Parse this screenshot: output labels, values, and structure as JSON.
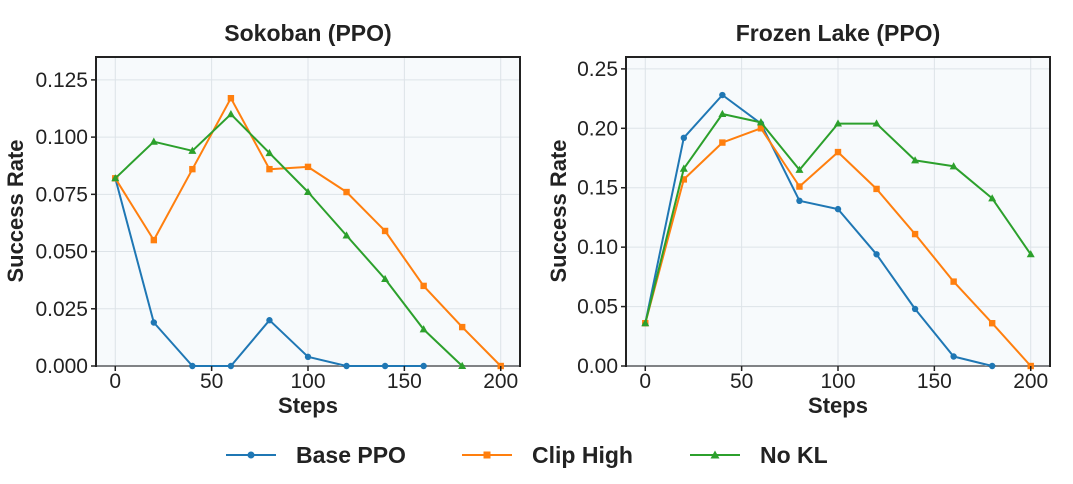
{
  "chart_data": [
    {
      "type": "line",
      "title": "Sokoban (PPO)",
      "xlabel": "Steps",
      "ylabel": "Success Rate",
      "xlim": [
        -10,
        210
      ],
      "ylim": [
        0,
        0.135
      ],
      "xticks": [
        0,
        50,
        100,
        150,
        200
      ],
      "yticks": [
        0.0,
        0.025,
        0.05,
        0.075,
        0.1,
        0.125
      ],
      "ytick_labels": [
        "0.000",
        "0.025",
        "0.050",
        "0.075",
        "0.100",
        "0.125"
      ],
      "xtick_labels": [
        "0",
        "50",
        "100",
        "150",
        "200"
      ],
      "series": [
        {
          "name": "Base PPO",
          "x": [
            0,
            20,
            40,
            60,
            80,
            100,
            120,
            140,
            160
          ],
          "values": [
            0.082,
            0.019,
            0.0,
            0.0,
            0.02,
            0.004,
            0.0,
            0.0,
            0.0
          ]
        },
        {
          "name": "Clip High",
          "x": [
            0,
            20,
            40,
            60,
            80,
            100,
            120,
            140,
            160,
            180,
            200
          ],
          "values": [
            0.082,
            0.055,
            0.086,
            0.117,
            0.086,
            0.087,
            0.076,
            0.059,
            0.035,
            0.017,
            0.0
          ]
        },
        {
          "name": "No KL",
          "x": [
            0,
            20,
            40,
            60,
            80,
            100,
            120,
            140,
            160,
            180
          ],
          "values": [
            0.082,
            0.098,
            0.094,
            0.11,
            0.093,
            0.076,
            0.057,
            0.038,
            0.016,
            0.0
          ]
        }
      ]
    },
    {
      "type": "line",
      "title": "Frozen Lake (PPO)",
      "xlabel": "Steps",
      "ylabel": "Success Rate",
      "xlim": [
        -10,
        210
      ],
      "ylim": [
        0,
        0.26
      ],
      "xticks": [
        0,
        50,
        100,
        150,
        200
      ],
      "yticks": [
        0.0,
        0.05,
        0.1,
        0.15,
        0.2,
        0.25
      ],
      "ytick_labels": [
        "0.00",
        "0.05",
        "0.10",
        "0.15",
        "0.20",
        "0.25"
      ],
      "xtick_labels": [
        "0",
        "50",
        "100",
        "150",
        "200"
      ],
      "series": [
        {
          "name": "Base PPO",
          "x": [
            0,
            20,
            40,
            60,
            80,
            100,
            120,
            140,
            160,
            180
          ],
          "values": [
            0.036,
            0.192,
            0.228,
            0.204,
            0.139,
            0.132,
            0.094,
            0.048,
            0.008,
            0.0
          ]
        },
        {
          "name": "Clip High",
          "x": [
            0,
            20,
            40,
            60,
            80,
            100,
            120,
            140,
            160,
            180,
            200
          ],
          "values": [
            0.036,
            0.157,
            0.188,
            0.2,
            0.151,
            0.18,
            0.149,
            0.111,
            0.071,
            0.036,
            0.0
          ]
        },
        {
          "name": "No KL",
          "x": [
            0,
            20,
            40,
            60,
            80,
            100,
            120,
            140,
            160,
            180,
            200
          ],
          "values": [
            0.036,
            0.166,
            0.212,
            0.205,
            0.165,
            0.204,
            0.204,
            0.173,
            0.168,
            0.141,
            0.094
          ]
        }
      ]
    }
  ],
  "legend": {
    "position": "bottom-center",
    "items": [
      {
        "label": "Base PPO",
        "color": "#1f77b4",
        "marker": "circle"
      },
      {
        "label": "Clip High",
        "color": "#ff7f0e",
        "marker": "square"
      },
      {
        "label": "No KL",
        "color": "#2ca02c",
        "marker": "triangle"
      }
    ]
  }
}
